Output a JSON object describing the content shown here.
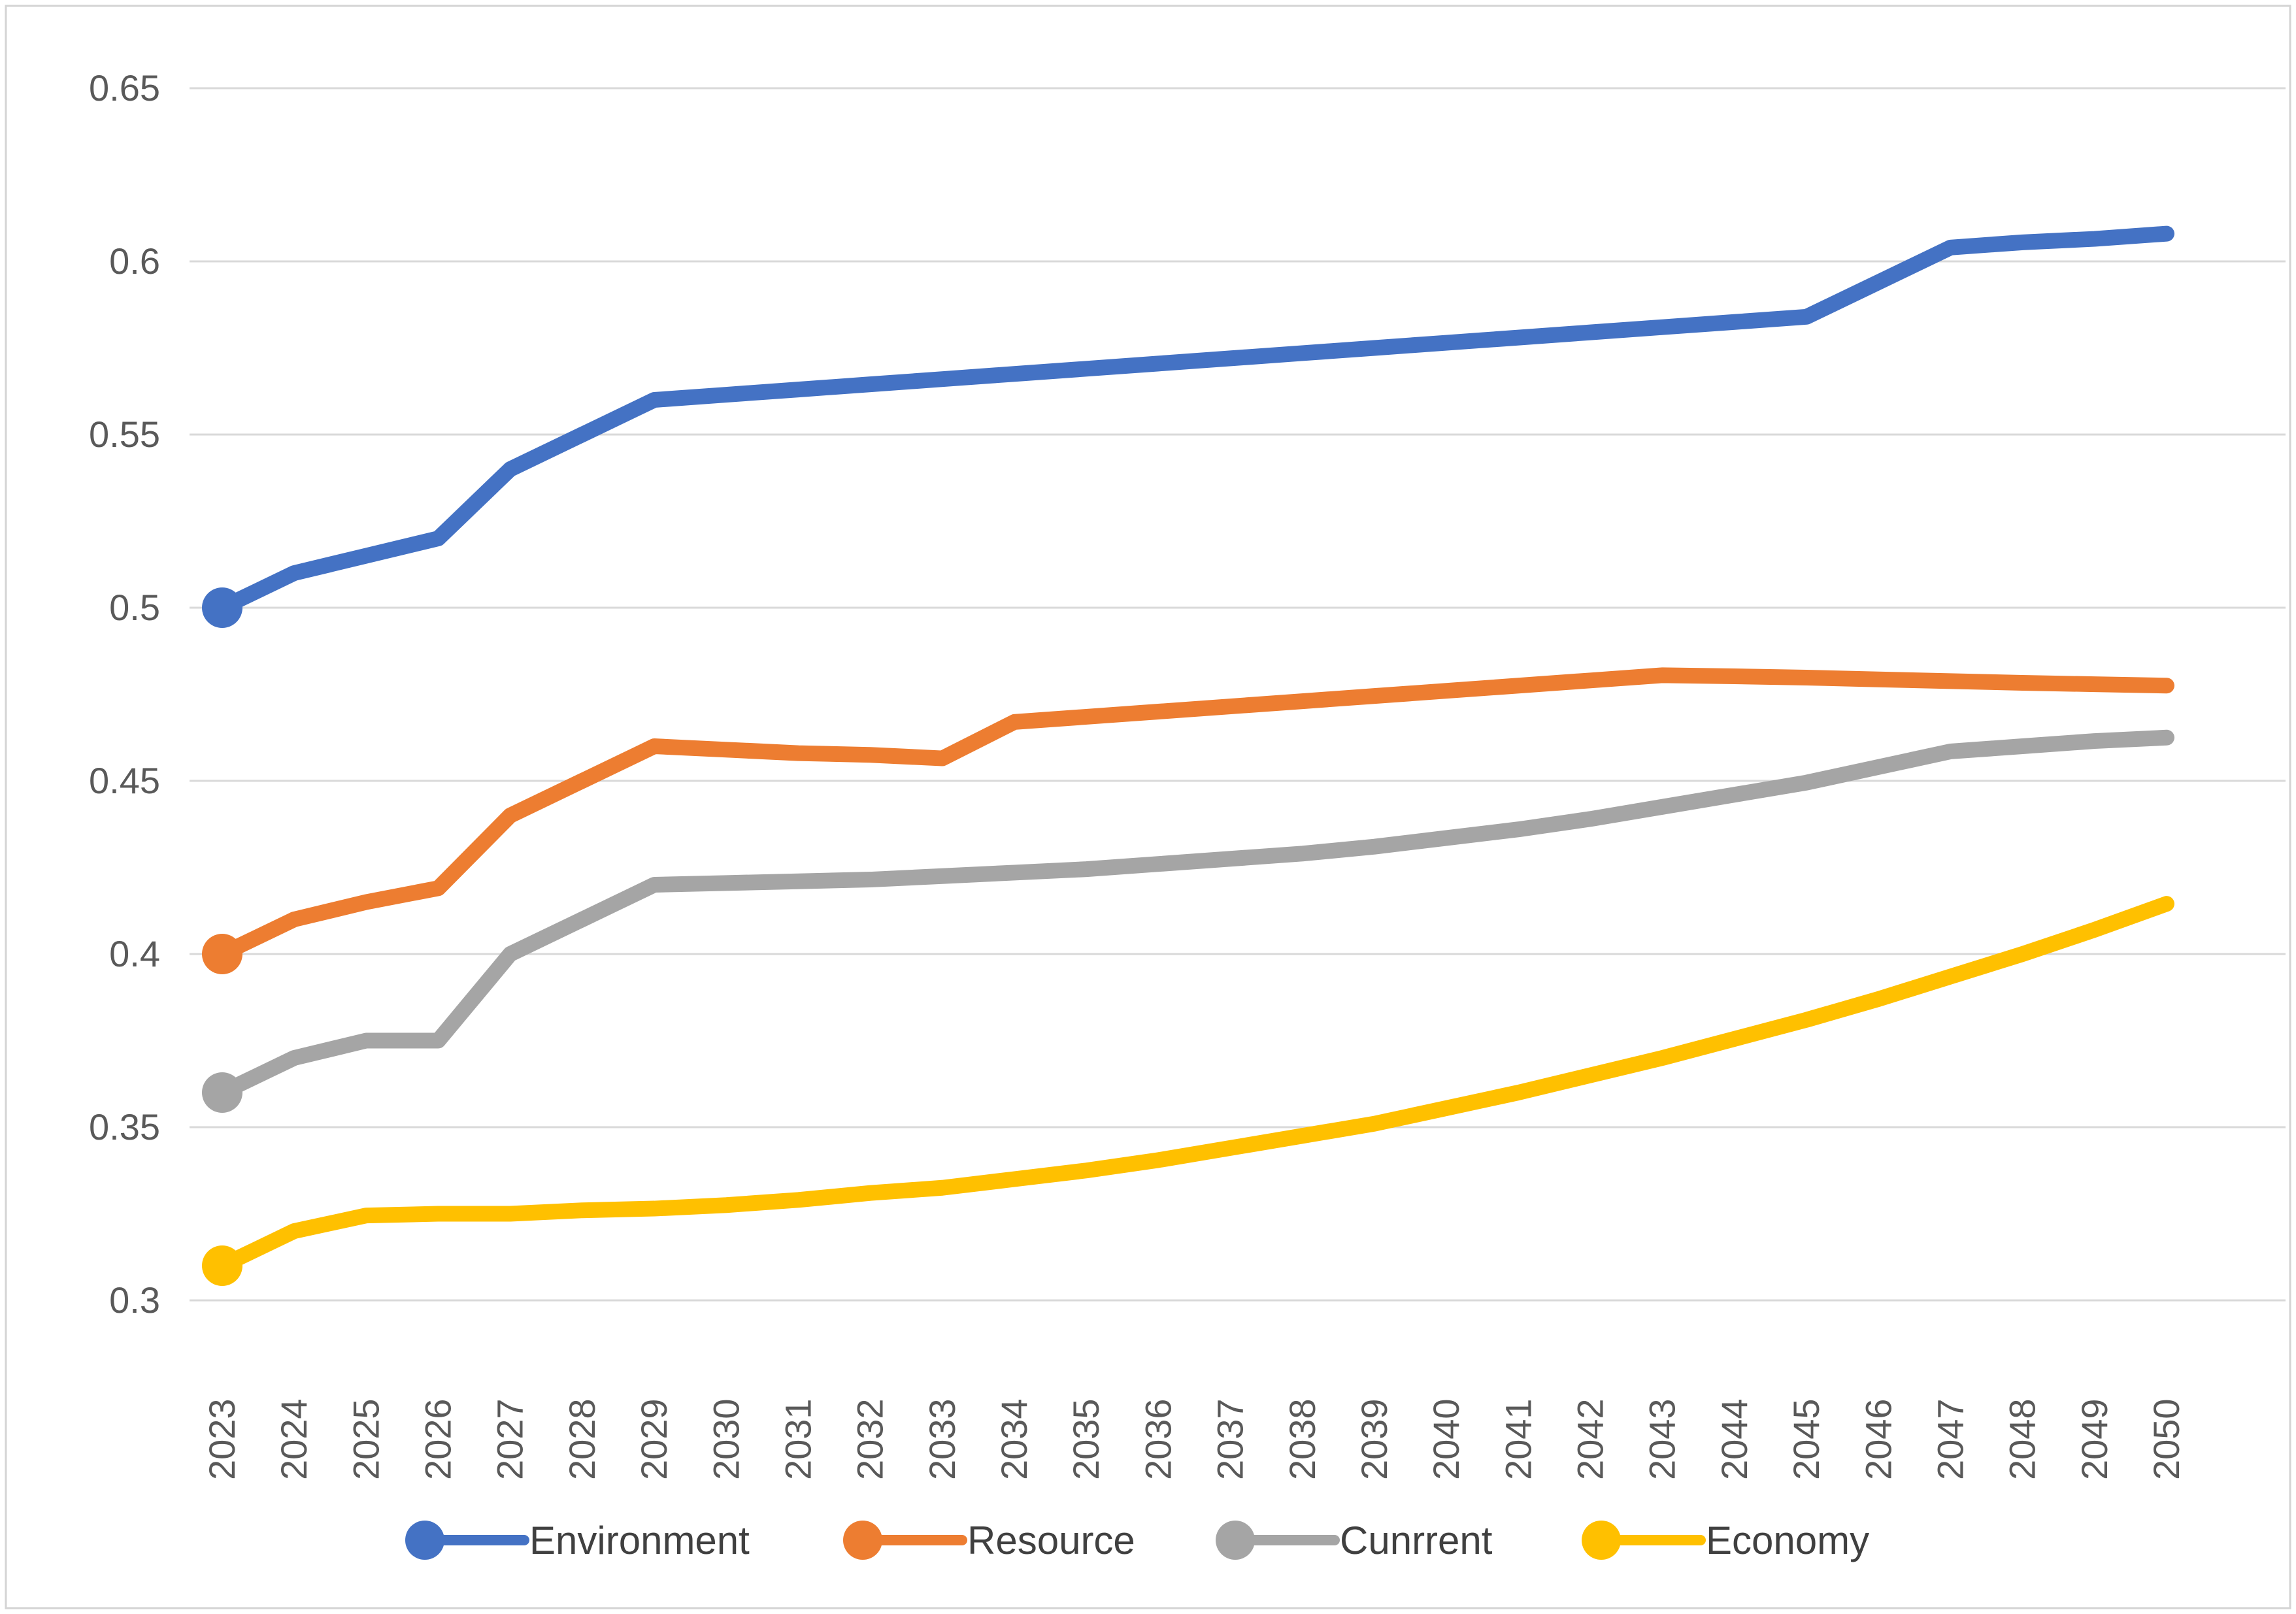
{
  "chart_data": {
    "type": "line",
    "title": "",
    "xlabel": "",
    "ylabel": "",
    "x": [
      "2023",
      "2024",
      "2025",
      "2026",
      "2027",
      "2028",
      "2029",
      "2030",
      "2031",
      "2032",
      "2033",
      "2034",
      "2035",
      "2036",
      "2037",
      "2038",
      "2039",
      "2040",
      "2041",
      "2042",
      "2043",
      "2044",
      "2045",
      "2046",
      "2047",
      "2048",
      "2049",
      "2050"
    ],
    "series": [
      {
        "name": "Environment",
        "color": "#4472C4",
        "values": [
          0.5,
          0.51,
          0.515,
          0.52,
          0.54,
          0.55,
          0.56,
          0.5615,
          0.563,
          0.5645,
          0.566,
          0.5675,
          0.569,
          0.5705,
          0.572,
          0.5735,
          0.575,
          0.5765,
          0.578,
          0.5795,
          0.581,
          0.5825,
          0.584,
          0.594,
          0.604,
          0.6055,
          0.6065,
          0.608
        ]
      },
      {
        "name": "Resource",
        "color": "#ED7D31",
        "values": [
          0.4,
          0.41,
          0.415,
          0.419,
          0.44,
          0.45,
          0.46,
          0.459,
          0.458,
          0.4575,
          0.4565,
          0.467,
          0.4685,
          0.47,
          0.4715,
          0.473,
          0.4745,
          0.476,
          0.4775,
          0.479,
          0.4805,
          0.4802,
          0.4798,
          0.4793,
          0.4788,
          0.4783,
          0.4779,
          0.4775
        ]
      },
      {
        "name": "Cunrrent",
        "color": "#A5A5A5",
        "values": [
          0.36,
          0.37,
          0.375,
          0.375,
          0.4,
          0.41,
          0.42,
          0.4205,
          0.421,
          0.4215,
          0.4225,
          0.4235,
          0.4245,
          0.426,
          0.4275,
          0.429,
          0.431,
          0.4335,
          0.436,
          0.439,
          0.4425,
          0.446,
          0.4495,
          0.454,
          0.4585,
          0.46,
          0.4615,
          0.4625
        ]
      },
      {
        "name": "Economy",
        "color": "#FFC000",
        "values": [
          0.31,
          0.32,
          0.3245,
          0.325,
          0.325,
          0.326,
          0.3265,
          0.3275,
          0.329,
          0.331,
          0.3325,
          0.335,
          0.3375,
          0.3405,
          0.344,
          0.3475,
          0.351,
          0.3555,
          0.36,
          0.365,
          0.37,
          0.3755,
          0.381,
          0.387,
          0.3935,
          0.4,
          0.407,
          0.4145
        ]
      }
    ],
    "ylim": [
      0.3,
      0.65
    ],
    "ytick_values": [
      0.65,
      0.6,
      0.55,
      0.5,
      0.45,
      0.4,
      0.35,
      0.3
    ],
    "ytick_labels": [
      "0.65",
      "0.6",
      "0.55",
      "0.5",
      "0.45",
      "0.4",
      "0.35",
      "0.3"
    ],
    "grid": true,
    "legend_position": "bottom",
    "marker_style": "circle-on-first-point-only"
  },
  "legend": {
    "items": [
      {
        "label": "Environment",
        "color": "#4472C4"
      },
      {
        "label": "Resource",
        "color": "#ED7D31"
      },
      {
        "label": "Cunrrent",
        "color": "#A5A5A5"
      },
      {
        "label": "Economy",
        "color": "#FFC000"
      }
    ]
  },
  "colors": {
    "grid": "#D9D9D9",
    "border": "#D4D4D4",
    "tick_text": "#595959",
    "legend_text": "#404040",
    "background": "#FFFFFF"
  }
}
